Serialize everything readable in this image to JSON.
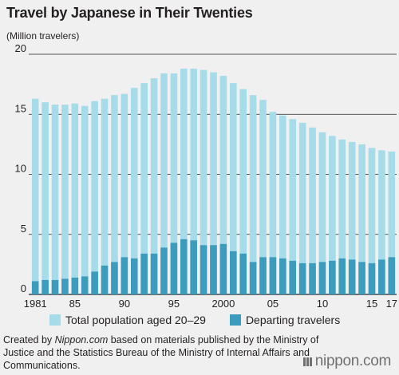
{
  "title": "Travel by Japanese in Their Twenties",
  "unit_label": "(Million travelers)",
  "legend": {
    "population_label": "Total population aged 20–29",
    "departing_label": "Departing travelers"
  },
  "source": {
    "prefix": "Created by ",
    "em": "Nippon.com",
    "rest": " based on materials published by the Ministry of Justice and the Statistics Bureau of the Ministry of Internal Affairs and Communications."
  },
  "logo": {
    "brand": "nippon",
    "suffix": ".com"
  },
  "colors": {
    "population": "#a6dcea",
    "departing": "#3b9cbe",
    "background": "#f0f0f0",
    "grid": "#231f20"
  },
  "chart_data": {
    "type": "bar",
    "stacked": false,
    "x": [
      1981,
      1982,
      1983,
      1984,
      1985,
      1986,
      1987,
      1988,
      1989,
      1990,
      1991,
      1992,
      1993,
      1994,
      1995,
      1996,
      1997,
      1998,
      1999,
      2000,
      2001,
      2002,
      2003,
      2004,
      2005,
      2006,
      2007,
      2008,
      2009,
      2010,
      2011,
      2012,
      2013,
      2014,
      2015,
      2016,
      2017
    ],
    "x_tick_labels": [
      "1981",
      "85",
      "90",
      "95",
      "2000",
      "05",
      "10",
      "15",
      "17"
    ],
    "x_tick_years": [
      1981,
      1985,
      1990,
      1995,
      2000,
      2005,
      2010,
      2015,
      2017
    ],
    "y_ticks": [
      "0",
      "5",
      "10",
      "15",
      "20"
    ],
    "ylim": [
      0,
      20
    ],
    "grid": true,
    "series": [
      {
        "name": "Total population aged 20–29",
        "values": [
          16.3,
          16.0,
          15.8,
          15.8,
          15.9,
          15.7,
          16.1,
          16.3,
          16.6,
          16.7,
          17.2,
          17.6,
          18.0,
          18.4,
          18.4,
          18.8,
          18.8,
          18.7,
          18.5,
          18.2,
          17.6,
          17.1,
          16.6,
          16.2,
          15.2,
          14.9,
          14.6,
          14.3,
          13.9,
          13.5,
          13.2,
          12.9,
          12.7,
          12.5,
          12.2,
          12.0,
          11.9
        ]
      },
      {
        "name": "Departing travelers",
        "values": [
          1.1,
          1.2,
          1.2,
          1.3,
          1.4,
          1.5,
          1.9,
          2.4,
          2.7,
          3.1,
          3.0,
          3.4,
          3.4,
          3.9,
          4.3,
          4.6,
          4.5,
          4.1,
          4.1,
          4.2,
          3.6,
          3.4,
          2.7,
          3.1,
          3.1,
          3.0,
          2.8,
          2.6,
          2.6,
          2.7,
          2.8,
          3.0,
          2.9,
          2.7,
          2.6,
          2.9,
          3.1
        ]
      }
    ]
  }
}
